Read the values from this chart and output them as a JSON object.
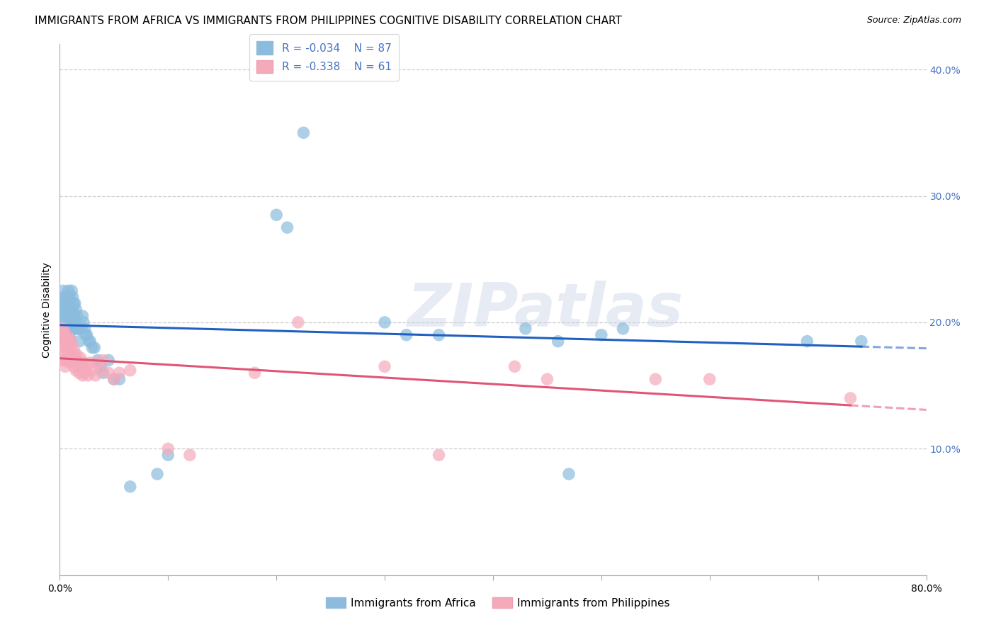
{
  "title": "IMMIGRANTS FROM AFRICA VS IMMIGRANTS FROM PHILIPPINES COGNITIVE DISABILITY CORRELATION CHART",
  "source": "Source: ZipAtlas.com",
  "ylabel": "Cognitive Disability",
  "xlim": [
    0.0,
    0.8
  ],
  "ylim": [
    0.0,
    0.42
  ],
  "ytick_positions": [
    0.1,
    0.2,
    0.3,
    0.4
  ],
  "ytick_labels": [
    "10.0%",
    "20.0%",
    "30.0%",
    "40.0%"
  ],
  "xtick_positions": [
    0.0,
    0.1,
    0.2,
    0.3,
    0.4,
    0.5,
    0.6,
    0.7,
    0.8
  ],
  "xtick_labels_show": [
    "0.0%",
    "",
    "",
    "",
    "",
    "",
    "",
    "",
    "80.0%"
  ],
  "africa_color": "#8BBCDE",
  "philippines_color": "#F5AABB",
  "africa_line_color": "#2060C0",
  "philippines_line_color": "#E05575",
  "africa_R": -0.034,
  "africa_N": 87,
  "philippines_R": -0.338,
  "philippines_N": 61,
  "watermark": "ZIPatlas",
  "background_color": "#FFFFFF",
  "grid_color": "#CCCCCC",
  "tick_color": "#4472C4",
  "title_fontsize": 11,
  "source_fontsize": 9,
  "axis_label_fontsize": 10,
  "tick_fontsize": 10,
  "legend_fontsize": 11,
  "africa_x": [
    0.001,
    0.001,
    0.002,
    0.002,
    0.002,
    0.003,
    0.003,
    0.003,
    0.003,
    0.004,
    0.004,
    0.004,
    0.004,
    0.005,
    0.005,
    0.005,
    0.005,
    0.005,
    0.006,
    0.006,
    0.006,
    0.006,
    0.007,
    0.007,
    0.007,
    0.007,
    0.008,
    0.008,
    0.008,
    0.008,
    0.009,
    0.009,
    0.009,
    0.01,
    0.01,
    0.01,
    0.01,
    0.011,
    0.011,
    0.011,
    0.012,
    0.012,
    0.012,
    0.013,
    0.013,
    0.014,
    0.014,
    0.015,
    0.015,
    0.016,
    0.016,
    0.017,
    0.018,
    0.018,
    0.019,
    0.02,
    0.021,
    0.022,
    0.023,
    0.024,
    0.025,
    0.027,
    0.028,
    0.03,
    0.032,
    0.035,
    0.038,
    0.04,
    0.045,
    0.05,
    0.055,
    0.065,
    0.09,
    0.1,
    0.2,
    0.21,
    0.225,
    0.3,
    0.32,
    0.35,
    0.43,
    0.46,
    0.47,
    0.5,
    0.52,
    0.69,
    0.74
  ],
  "africa_y": [
    0.19,
    0.205,
    0.185,
    0.2,
    0.215,
    0.195,
    0.205,
    0.215,
    0.225,
    0.19,
    0.2,
    0.21,
    0.22,
    0.185,
    0.195,
    0.205,
    0.215,
    0.22,
    0.19,
    0.2,
    0.21,
    0.22,
    0.185,
    0.195,
    0.21,
    0.22,
    0.195,
    0.205,
    0.215,
    0.225,
    0.19,
    0.205,
    0.22,
    0.185,
    0.195,
    0.205,
    0.215,
    0.195,
    0.21,
    0.225,
    0.2,
    0.21,
    0.22,
    0.205,
    0.215,
    0.2,
    0.215,
    0.195,
    0.21,
    0.195,
    0.205,
    0.195,
    0.185,
    0.195,
    0.195,
    0.195,
    0.205,
    0.2,
    0.195,
    0.19,
    0.19,
    0.185,
    0.185,
    0.18,
    0.18,
    0.17,
    0.165,
    0.16,
    0.17,
    0.155,
    0.155,
    0.07,
    0.08,
    0.095,
    0.285,
    0.275,
    0.35,
    0.2,
    0.19,
    0.19,
    0.195,
    0.185,
    0.08,
    0.19,
    0.195,
    0.185,
    0.185
  ],
  "philippines_x": [
    0.001,
    0.002,
    0.002,
    0.003,
    0.003,
    0.003,
    0.004,
    0.004,
    0.004,
    0.005,
    0.005,
    0.005,
    0.006,
    0.006,
    0.007,
    0.007,
    0.008,
    0.008,
    0.009,
    0.009,
    0.01,
    0.01,
    0.011,
    0.011,
    0.012,
    0.013,
    0.013,
    0.014,
    0.015,
    0.015,
    0.016,
    0.017,
    0.018,
    0.019,
    0.02,
    0.021,
    0.022,
    0.023,
    0.025,
    0.026,
    0.028,
    0.03,
    0.033,
    0.035,
    0.038,
    0.04,
    0.045,
    0.05,
    0.055,
    0.065,
    0.1,
    0.12,
    0.18,
    0.22,
    0.3,
    0.35,
    0.42,
    0.45,
    0.55,
    0.6,
    0.73
  ],
  "philippines_y": [
    0.195,
    0.18,
    0.195,
    0.17,
    0.185,
    0.195,
    0.17,
    0.182,
    0.192,
    0.165,
    0.18,
    0.19,
    0.175,
    0.185,
    0.17,
    0.185,
    0.175,
    0.188,
    0.168,
    0.182,
    0.172,
    0.186,
    0.17,
    0.183,
    0.175,
    0.165,
    0.178,
    0.172,
    0.162,
    0.175,
    0.17,
    0.165,
    0.16,
    0.172,
    0.165,
    0.158,
    0.168,
    0.16,
    0.165,
    0.158,
    0.168,
    0.162,
    0.158,
    0.168,
    0.162,
    0.17,
    0.16,
    0.155,
    0.16,
    0.162,
    0.1,
    0.095,
    0.16,
    0.2,
    0.165,
    0.095,
    0.165,
    0.155,
    0.155,
    0.155,
    0.14
  ],
  "legend_bottom": [
    "Immigrants from Africa",
    "Immigrants from Philippines"
  ]
}
